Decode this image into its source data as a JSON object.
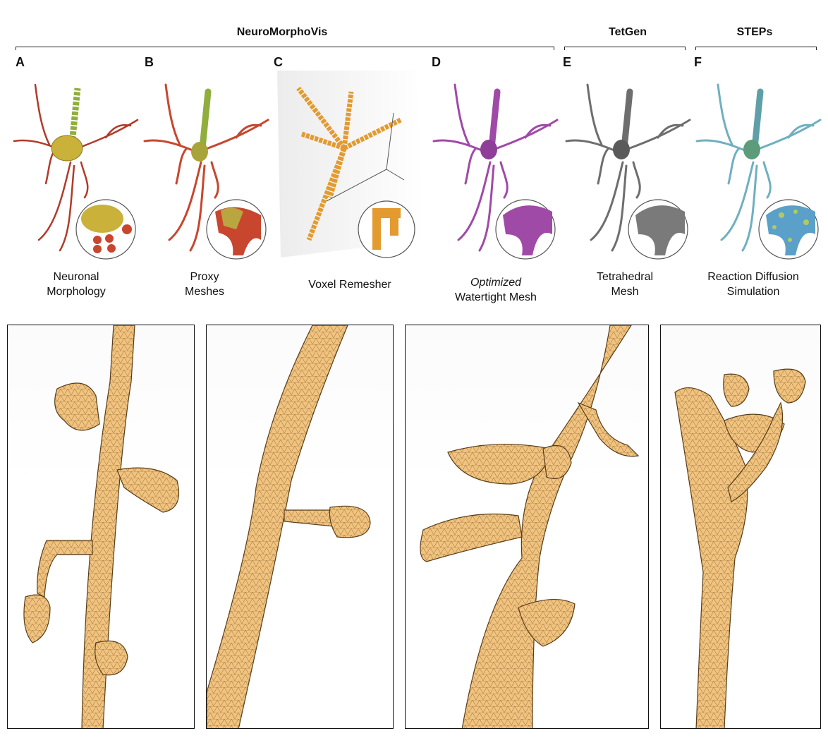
{
  "groups": {
    "neuromorphovis": "NeuroMorphoVis",
    "tetgen": "TetGen",
    "steps": "STEPs"
  },
  "panels": [
    {
      "letter": "A",
      "caption_line1": "Neuronal",
      "caption_line2": "Morphology"
    },
    {
      "letter": "B",
      "caption_line1": "Proxy",
      "caption_line2": "Meshes"
    },
    {
      "letter": "C",
      "caption_line1": "Voxel Remesher",
      "caption_line2": ""
    },
    {
      "letter": "D",
      "caption_line1": "Optimized",
      "caption_line2": "Watertight Mesh"
    },
    {
      "letter": "E",
      "caption_line1": "Tetrahedral",
      "caption_line2": "Mesh"
    },
    {
      "letter": "F",
      "caption_line1": "Reaction Diffusion",
      "caption_line2": "Simulation"
    }
  ],
  "colors": {
    "morphology": "#b23a2a",
    "soma": "#c9b13a",
    "apical": "#8fae3c",
    "proxy": "#c8462e",
    "voxel": "#e39a2e",
    "watertight": "#a04aa8",
    "tetrahedral": "#6e6e6e",
    "simulation": "#6fb0c0",
    "mesh_fill": "#f2c37e",
    "mesh_edge": "#8a6a3a"
  }
}
